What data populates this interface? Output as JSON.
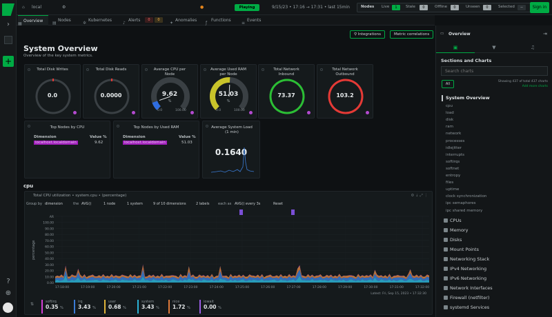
{
  "topbar": {
    "space": "local",
    "status": "Playing",
    "timeframe": "9/15/23 • 17:16 → 17:31 • last 15min",
    "nodes_label": "Nodes",
    "live_label": "Live",
    "live_count": "1",
    "stale_label": "Stale",
    "stale_count": "0",
    "offline_label": "Offline",
    "offline_count": "0",
    "unseen_label": "Unseen",
    "unseen_count": "0",
    "selected_label": "Selected",
    "selected_value": "--",
    "signin": "Sign in"
  },
  "tabs": [
    {
      "label": "Overview",
      "icon": "grid-icon"
    },
    {
      "label": "Nodes",
      "icon": "nodes-icon"
    },
    {
      "label": "Kubernetes",
      "icon": "kubernetes-icon"
    },
    {
      "label": "Alerts",
      "icon": "bell-icon",
      "count_a": "0",
      "count_b": "0"
    },
    {
      "label": "Anomalies",
      "icon": "anomaly-icon"
    },
    {
      "label": "Functions",
      "icon": "functions-icon"
    },
    {
      "label": "Events",
      "icon": "events-icon"
    }
  ],
  "actions": {
    "integrations": "Integrations",
    "metric_correlations": "Metric correlations"
  },
  "page": {
    "title": "System Overview",
    "subtitle": "Overview of the key system metrics."
  },
  "gauges": [
    {
      "title": "Total Disk Writes",
      "value": "0.0",
      "min": "",
      "max": "",
      "fill": 0.0,
      "color": "#e53935"
    },
    {
      "title": "Total Disk Reads",
      "value": "0.0000",
      "min": "",
      "max": "",
      "fill": 0.0,
      "color": "#e53935"
    },
    {
      "title": "Average CPU per Node",
      "value": "9.62",
      "unit": "%",
      "min": "0.0",
      "max": "100.00",
      "fill": 0.096,
      "color": "#2f6de0"
    },
    {
      "title": "Average Used RAM per Node",
      "value": "51.03",
      "unit": "%",
      "min": "0.0",
      "max": "100.00",
      "fill": 0.51,
      "color": "#c8c32a"
    },
    {
      "title": "Total Network Inbound",
      "value": "73.37",
      "min": "",
      "max": "",
      "fill": 1.0,
      "color": "#2bbf34"
    },
    {
      "title": "Total Network Outbound",
      "value": "103.2",
      "min": "",
      "max": "",
      "fill": 1.0,
      "color": "#e53935"
    }
  ],
  "top_cpu": {
    "title": "Top Nodes by CPU",
    "col1": "Dimension",
    "col2": "Value %",
    "row_name": "localhost.localdomain",
    "row_value": "9.62"
  },
  "top_ram": {
    "title": "Top Nodes by Used RAM",
    "col1": "Dimension",
    "col2": "Value %",
    "row_name": "localhost.localdomain",
    "row_value": "51.03"
  },
  "load": {
    "title": "Average System Load (1 min)",
    "value": "0.1640"
  },
  "cpu_section": {
    "heading": "cpu",
    "chart_title": "Total CPU utilization • system.cpu • (percentage)",
    "group_by": "Group by",
    "dimension": "dimension",
    "the": "the",
    "agg": "AVG()",
    "nodes": "1 node",
    "systems": "1 system",
    "dimensions": "9 of 10 dimensions",
    "labels": "2 labels",
    "each_as": "each as",
    "every": "AVG() every 3s",
    "reset": "Reset",
    "ylabel": "percentage",
    "latest": "Latest: Fri, Sep 15, 2023 • 17:32:30"
  },
  "chart_data": {
    "type": "area",
    "ylabel": "percentage",
    "yticks": [
      "AR",
      "100.00",
      "90.00",
      "80.00",
      "70.00",
      "60.00",
      "50.00",
      "40.00",
      "30.00",
      "20.00",
      "10.00",
      "0.00"
    ],
    "x": [
      "17:18:00",
      "17:19:00",
      "17:20:00",
      "17:21:00",
      "17:22:00",
      "17:23:00",
      "17:24:00",
      "17:25:00",
      "17:26:00",
      "17:27:00",
      "17:28:00",
      "17:29:00",
      "17:30:00",
      "17:31:00",
      "17:32:00"
    ],
    "ylim": [
      0,
      100
    ],
    "series": [
      {
        "name": "softirq",
        "color": "#d63fd6",
        "value": 0.35
      },
      {
        "name": "irq",
        "color": "#3a7bd5",
        "value": 3.43
      },
      {
        "name": "user",
        "color": "#e0b43a",
        "value": 0.68
      },
      {
        "name": "system",
        "color": "#2bb3d6",
        "value": 3.43
      },
      {
        "name": "nice",
        "color": "#e07a3a",
        "value": 1.72
      },
      {
        "name": "iowait",
        "color": "#9b5de5",
        "value": 0.0
      }
    ]
  },
  "stats": [
    {
      "label": "softirq",
      "value": "0.35",
      "unit": "%",
      "color": "#d63fd6"
    },
    {
      "label": "irq",
      "value": "3.43",
      "unit": "%",
      "color": "#3a7bd5"
    },
    {
      "label": "user",
      "value": "0.68",
      "unit": "%",
      "color": "#e0b43a"
    },
    {
      "label": "system",
      "value": "3.43",
      "unit": "%",
      "color": "#2bb3d6"
    },
    {
      "label": "nice",
      "value": "1.72",
      "unit": "%",
      "color": "#e07a3a"
    },
    {
      "label": "iowait",
      "value": "0.00",
      "unit": "%",
      "color": "#9b5de5"
    }
  ],
  "rpanel": {
    "title": "Overview",
    "sections_title": "Sections and Charts",
    "search_placeholder": "Search charts",
    "all": "All",
    "showing": "Showing 437 of total 437 charts",
    "add_more": "Add more charts",
    "current": "System Overview",
    "items": [
      "cpu",
      "load",
      "disk",
      "ram",
      "network",
      "processes",
      "idlejitter",
      "interrupts",
      "softirqs",
      "softnet",
      "entropy",
      "files",
      "uptime",
      "clock synchronization",
      "ipc semaphores",
      "ipc shared memory"
    ],
    "sections": [
      "CPUs",
      "Memory",
      "Disks",
      "Mount Points",
      "Networking Stack",
      "IPv4 Networking",
      "IPv6 Networking",
      "Network Interfaces",
      "Firewall (netfilter)",
      "systemd Services"
    ]
  }
}
